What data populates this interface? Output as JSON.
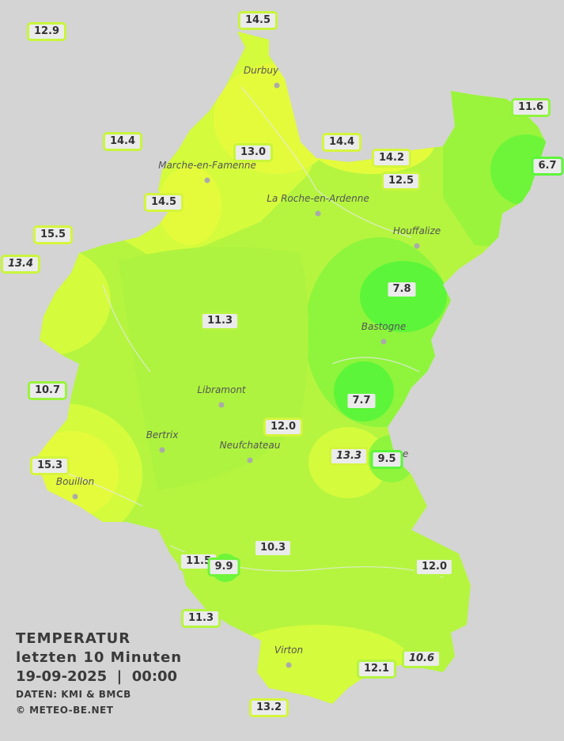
{
  "legend": {
    "title": "TEMPERATUR",
    "subtitle": "letzten 10 Minuten",
    "datetime": "19-09-2025  |  00:00",
    "source": "DATEN: KMI & BMCB",
    "copyright": "© METEO-BE.NET"
  },
  "colors": {
    "background": "#d4d4d4",
    "mid": "#b5f540",
    "warm": "#e4fb3c",
    "cool": "#7df53a",
    "cold": "#55f63c",
    "border": "#c8f53c"
  },
  "towns": [
    {
      "name": "Durbuy"
    },
    {
      "name": "Marche-en-Famenne"
    },
    {
      "name": "La Roche-en-Ardenne"
    },
    {
      "name": "Houffalize"
    },
    {
      "name": "Bastogne"
    },
    {
      "name": "Libramont"
    },
    {
      "name": "Bertrix"
    },
    {
      "name": "Neufchateau"
    },
    {
      "name": "Bouillon"
    },
    {
      "name": "nge"
    },
    {
      "name": "Virton"
    }
  ],
  "stations": [
    {
      "value": "12.9",
      "italic": false
    },
    {
      "value": "14.5",
      "italic": false
    },
    {
      "value": "11.6",
      "italic": false
    },
    {
      "value": "14.4",
      "italic": false
    },
    {
      "value": "13.0",
      "italic": false
    },
    {
      "value": "14.4",
      "italic": false
    },
    {
      "value": "14.2",
      "italic": false
    },
    {
      "value": "6.7",
      "italic": false
    },
    {
      "value": "12.5",
      "italic": false
    },
    {
      "value": "14.5",
      "italic": false
    },
    {
      "value": "15.5",
      "italic": false
    },
    {
      "value": "13.4",
      "italic": true
    },
    {
      "value": "7.8",
      "italic": false
    },
    {
      "value": "11.3",
      "italic": false
    },
    {
      "value": "10.7",
      "italic": false
    },
    {
      "value": "7.7",
      "italic": false
    },
    {
      "value": "12.0",
      "italic": false
    },
    {
      "value": "13.3",
      "italic": true
    },
    {
      "value": "9.5",
      "italic": false
    },
    {
      "value": "15.3",
      "italic": false
    },
    {
      "value": "10.3",
      "italic": false
    },
    {
      "value": "11.5",
      "italic": false
    },
    {
      "value": "9.9",
      "italic": false
    },
    {
      "value": "12.0",
      "italic": false
    },
    {
      "value": "11.3",
      "italic": false
    },
    {
      "value": "10.6",
      "italic": true
    },
    {
      "value": "12.1",
      "italic": false
    },
    {
      "value": "13.2",
      "italic": false
    }
  ]
}
